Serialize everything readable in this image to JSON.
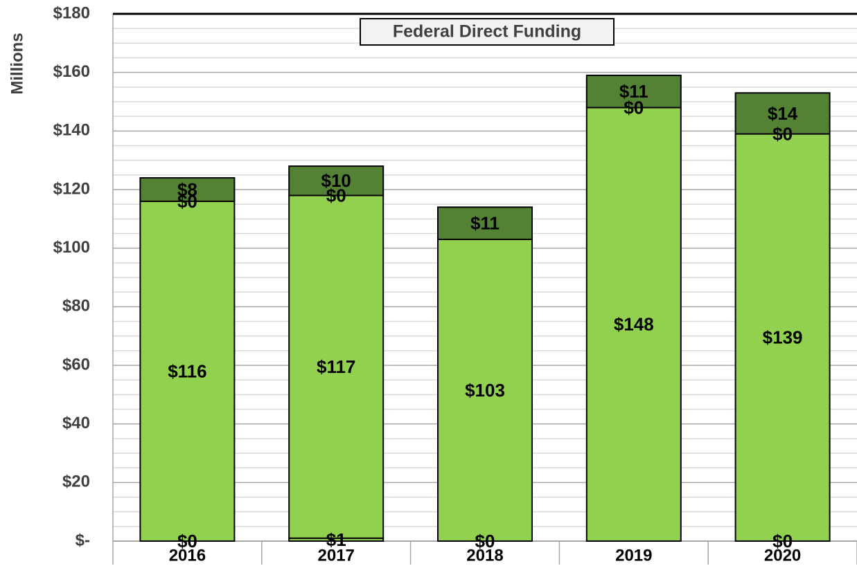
{
  "chart_data": {
    "type": "stacked_bar",
    "title": "Federal Direct Funding",
    "y_label": "Millions",
    "categories": [
      "2016",
      "2017",
      "2018",
      "2019",
      "2020"
    ],
    "series": [
      {
        "color": "#92d050",
        "values": [
          0,
          1,
          0,
          null,
          0
        ],
        "value_labels": [
          "$0",
          "$1",
          "$0",
          null,
          "$0"
        ]
      },
      {
        "color": "#92d050",
        "values": [
          116,
          117,
          103,
          148,
          139
        ],
        "value_labels": [
          "$116",
          "$117",
          "$103",
          "$148",
          "$139"
        ]
      },
      {
        "color": "#92d050",
        "values": [
          0,
          0,
          null,
          0,
          0
        ],
        "value_labels": [
          "$0",
          "$0",
          null,
          "$0",
          "$0"
        ]
      },
      {
        "color": "#548235",
        "values": [
          8,
          10,
          11,
          11,
          14
        ],
        "value_labels": [
          "$8",
          "$10",
          "$11",
          "$11",
          "$14"
        ]
      }
    ],
    "ylim": [
      0,
      180
    ],
    "yticks": [
      {
        "value": 0,
        "label": "$-"
      },
      {
        "value": 20,
        "label": "$20"
      },
      {
        "value": 40,
        "label": "$40"
      },
      {
        "value": 60,
        "label": "$60"
      },
      {
        "value": 80,
        "label": "$80"
      },
      {
        "value": 100,
        "label": "$100"
      },
      {
        "value": 120,
        "label": "$120"
      },
      {
        "value": 140,
        "label": "$140"
      },
      {
        "value": 160,
        "label": "$160"
      },
      {
        "value": 180,
        "label": "$180"
      }
    ],
    "yminorticks": [
      5,
      10,
      15,
      25,
      30,
      35,
      45,
      50,
      55,
      65,
      70,
      75,
      85,
      90,
      95,
      105,
      110,
      115,
      125,
      130,
      135,
      145,
      150,
      155,
      165,
      170,
      175
    ],
    "grid": true
  }
}
